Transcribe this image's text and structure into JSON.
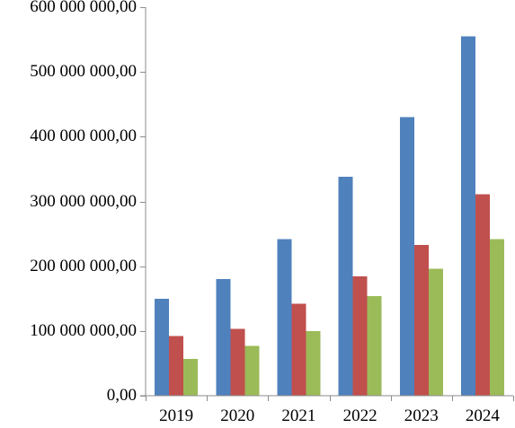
{
  "chart_data": {
    "type": "bar",
    "categories": [
      "2019",
      "2020",
      "2021",
      "2022",
      "2023",
      "2024"
    ],
    "series": [
      {
        "color": "#4f81bd",
        "values": [
          150000000,
          180000000,
          242000000,
          338000000,
          430000000,
          555000000
        ]
      },
      {
        "color": "#c0504d",
        "values": [
          92000000,
          103000000,
          142000000,
          184000000,
          233000000,
          311000000
        ]
      },
      {
        "color": "#9bbb59",
        "values": [
          57000000,
          77000000,
          100000000,
          154000000,
          196000000,
          242000000
        ]
      }
    ],
    "y_ticks": [
      "0,00",
      "100 000 000,00",
      "200 000 000,00",
      "300 000 000,00",
      "400 000 000,00",
      "500 000 000,00",
      "600 000 000,00"
    ],
    "ylim": [
      0,
      600000000
    ],
    "title": "",
    "xlabel": "",
    "ylabel": "",
    "grid": false,
    "legend": "none"
  }
}
